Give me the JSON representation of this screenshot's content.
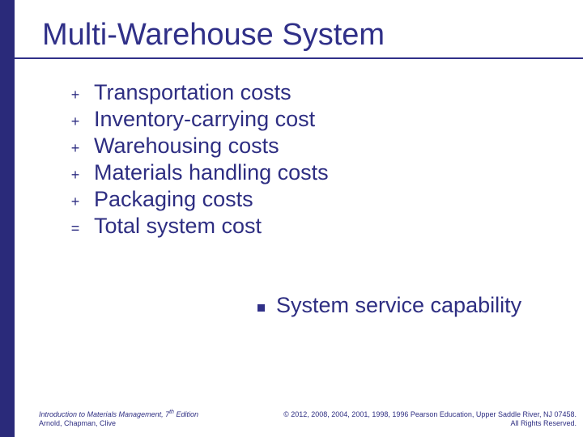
{
  "colors": {
    "left_bar": "#2a2a7a",
    "title": "#303088",
    "underline": "#303088",
    "body_text": "#2e2e82",
    "operator": "#2e2e82",
    "bullet_square": "#303088",
    "footer_text": "#2e2e82"
  },
  "title": "Multi-Warehouse System",
  "costs": [
    {
      "op": "+",
      "label": "Transportation costs"
    },
    {
      "op": "+",
      "label": "Inventory-carrying cost"
    },
    {
      "op": "+",
      "label": "Warehousing costs"
    },
    {
      "op": "+",
      "label": "Materials handling costs"
    },
    {
      "op": "+",
      "label": "Packaging costs"
    },
    {
      "op": "=",
      "label": "Total system cost"
    }
  ],
  "sub_bullet": "System service capability",
  "footer": {
    "book_title": "Introduction to Materials Management, ",
    "edition_num": "7",
    "edition_suffix": "th",
    "edition_word": " Edition",
    "authors": "Arnold, Chapman, Clive",
    "copyright_line": "© 2012, 2008, 2004, 2001, 1998, 1996 Pearson Education, Upper Saddle River, NJ 07458.",
    "rights": "All Rights Reserved."
  }
}
